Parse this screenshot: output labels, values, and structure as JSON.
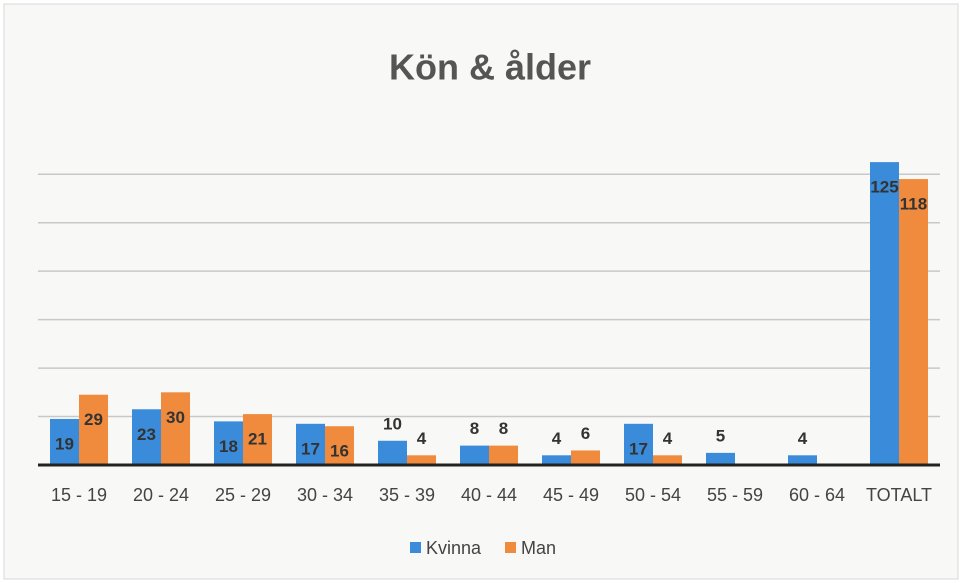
{
  "chart_data": {
    "type": "bar",
    "title": "Kön & ålder",
    "categories": [
      "15 - 19",
      "20 - 24",
      "25 - 29",
      "30 - 34",
      "35 - 39",
      "40 - 44",
      "45 - 49",
      "50 - 54",
      "55 - 59",
      "60 - 64",
      "TOTALT"
    ],
    "series": [
      {
        "name": "Kvinna",
        "color": "#3a8bd9",
        "values": [
          19,
          23,
          18,
          17,
          10,
          8,
          4,
          17,
          5,
          4,
          125
        ]
      },
      {
        "name": "Man",
        "color": "#f08a3d",
        "values": [
          29,
          30,
          21,
          16,
          4,
          8,
          6,
          4,
          null,
          null,
          118
        ]
      }
    ],
    "ylim": [
      0,
      130
    ],
    "yticks": [
      0,
      20,
      40,
      60,
      80,
      100,
      120
    ],
    "grid": true,
    "legend": "bottom"
  }
}
